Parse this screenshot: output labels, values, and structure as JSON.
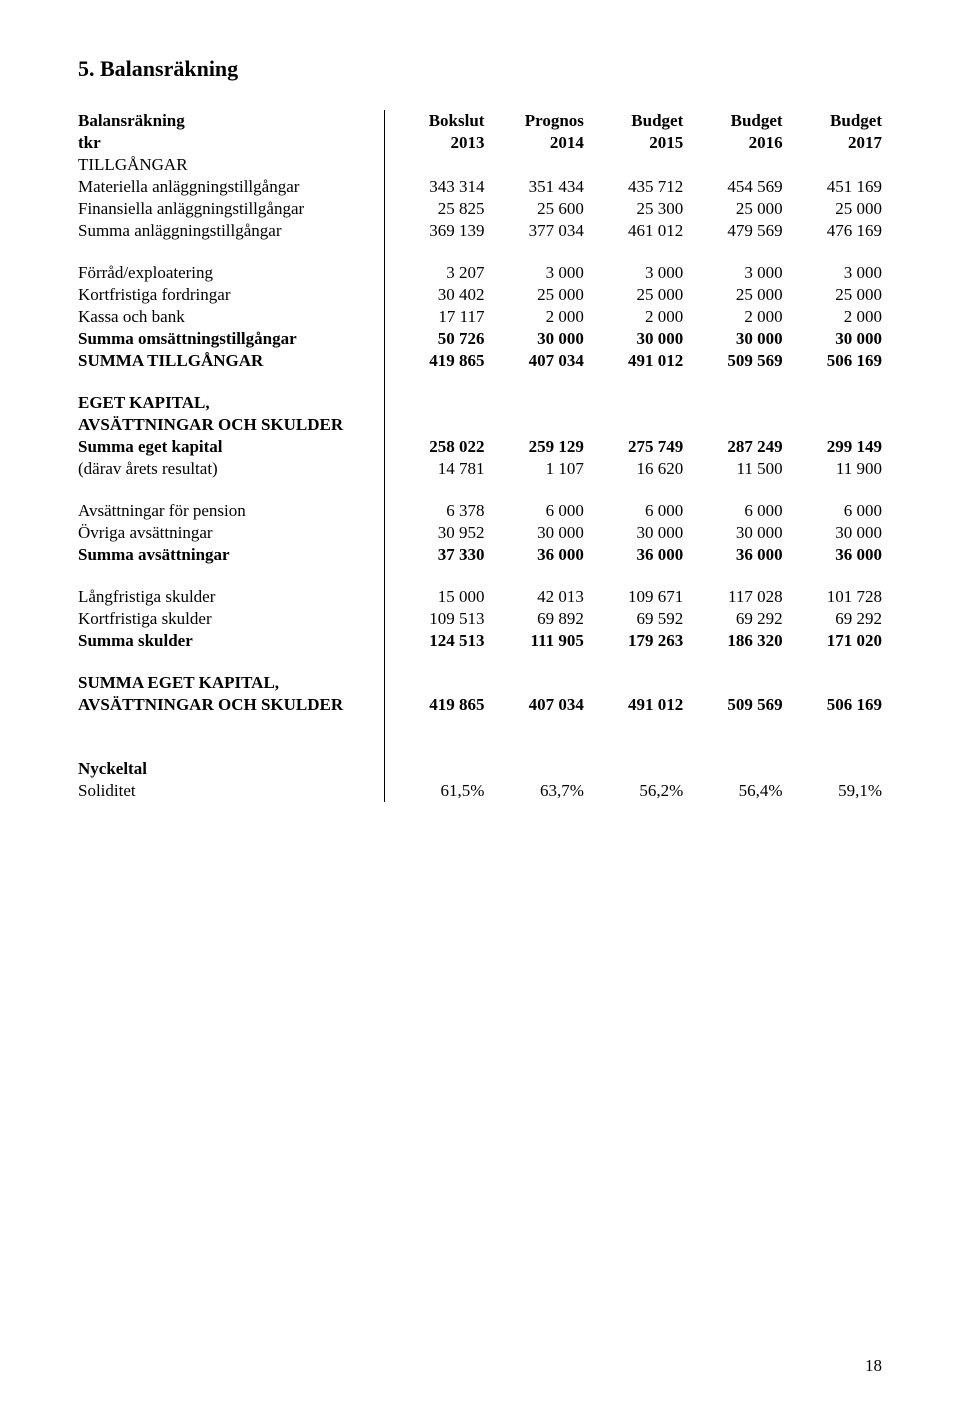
{
  "section_title": "5. Balansräkning",
  "table_title": "Balansräkning",
  "tkr_label": "tkr",
  "columns": {
    "h1": [
      "Bokslut",
      "2013"
    ],
    "h2": [
      "Prognos",
      "2014"
    ],
    "h3": [
      "Budget",
      "2015"
    ],
    "h4": [
      "Budget",
      "2016"
    ],
    "h5": [
      "Budget",
      "2017"
    ]
  },
  "sections": {
    "tillgangar_heading": "TILLGÅNGAR",
    "materiella": {
      "label": "Materiella anläggningstillgångar",
      "v": [
        "343 314",
        "351 434",
        "435 712",
        "454 569",
        "451 169"
      ]
    },
    "finansiella": {
      "label": "Finansiella anläggningstillgångar",
      "v": [
        "25 825",
        "25 600",
        "25 300",
        "25 000",
        "25 000"
      ]
    },
    "summa_anlagg": {
      "label": "Summa anläggningstillgångar",
      "v": [
        "369 139",
        "377 034",
        "461 012",
        "479 569",
        "476 169"
      ]
    },
    "forrad": {
      "label": "Förråd/exploatering",
      "v": [
        "3 207",
        "3 000",
        "3 000",
        "3 000",
        "3 000"
      ]
    },
    "kortfristiga_fordr": {
      "label": "Kortfristiga fordringar",
      "v": [
        "30 402",
        "25 000",
        "25 000",
        "25 000",
        "25 000"
      ]
    },
    "kassa": {
      "label": "Kassa och bank",
      "v": [
        "17 117",
        "2 000",
        "2 000",
        "2 000",
        "2 000"
      ]
    },
    "summa_omsatt": {
      "label": "Summa omsättningstillgångar",
      "v": [
        "50 726",
        "30 000",
        "30 000",
        "30 000",
        "30 000"
      ]
    },
    "summa_tillgangar": {
      "label": "SUMMA TILLGÅNGAR",
      "v": [
        "419 865",
        "407 034",
        "491 012",
        "509 569",
        "506 169"
      ]
    },
    "eget_kap_heading1": "EGET KAPITAL,",
    "eget_kap_heading2": "AVSÄTTNINGAR OCH SKULDER",
    "summa_eget": {
      "label": "Summa eget kapital",
      "v": [
        "258 022",
        "259 129",
        "275 749",
        "287 249",
        "299 149"
      ]
    },
    "darav": {
      "label": "(därav årets resultat)",
      "v": [
        "14 781",
        "1 107",
        "16 620",
        "11 500",
        "11 900"
      ]
    },
    "avsatt_pension": {
      "label": "Avsättningar för pension",
      "v": [
        "6 378",
        "6 000",
        "6 000",
        "6 000",
        "6 000"
      ]
    },
    "ovriga_avsatt": {
      "label": "Övriga avsättningar",
      "v": [
        "30 952",
        "30 000",
        "30 000",
        "30 000",
        "30 000"
      ]
    },
    "summa_avsatt": {
      "label": "Summa avsättningar",
      "v": [
        "37 330",
        "36 000",
        "36 000",
        "36 000",
        "36 000"
      ]
    },
    "langfristiga": {
      "label": "Långfristiga skulder",
      "v": [
        "15 000",
        "42 013",
        "109 671",
        "117 028",
        "101 728"
      ]
    },
    "kortfristiga_sk": {
      "label": "Kortfristiga skulder",
      "v": [
        "109 513",
        "69 892",
        "69 592",
        "69 292",
        "69 292"
      ]
    },
    "summa_skulder": {
      "label": "Summa skulder",
      "v": [
        "124 513",
        "111 905",
        "179 263",
        "186 320",
        "171 020"
      ]
    },
    "summa_eget_kap_heading1": "SUMMA EGET KAPITAL,",
    "summa_eget_kap_row": {
      "label": "AVSÄTTNINGAR OCH SKULDER",
      "v": [
        "419 865",
        "407 034",
        "491 012",
        "509 569",
        "506 169"
      ]
    },
    "nyckeltal_heading": "Nyckeltal",
    "soliditet": {
      "label": "Soliditet",
      "v": [
        "61,5%",
        "63,7%",
        "56,2%",
        "56,4%",
        "59,1%"
      ]
    }
  },
  "page_number": "18"
}
